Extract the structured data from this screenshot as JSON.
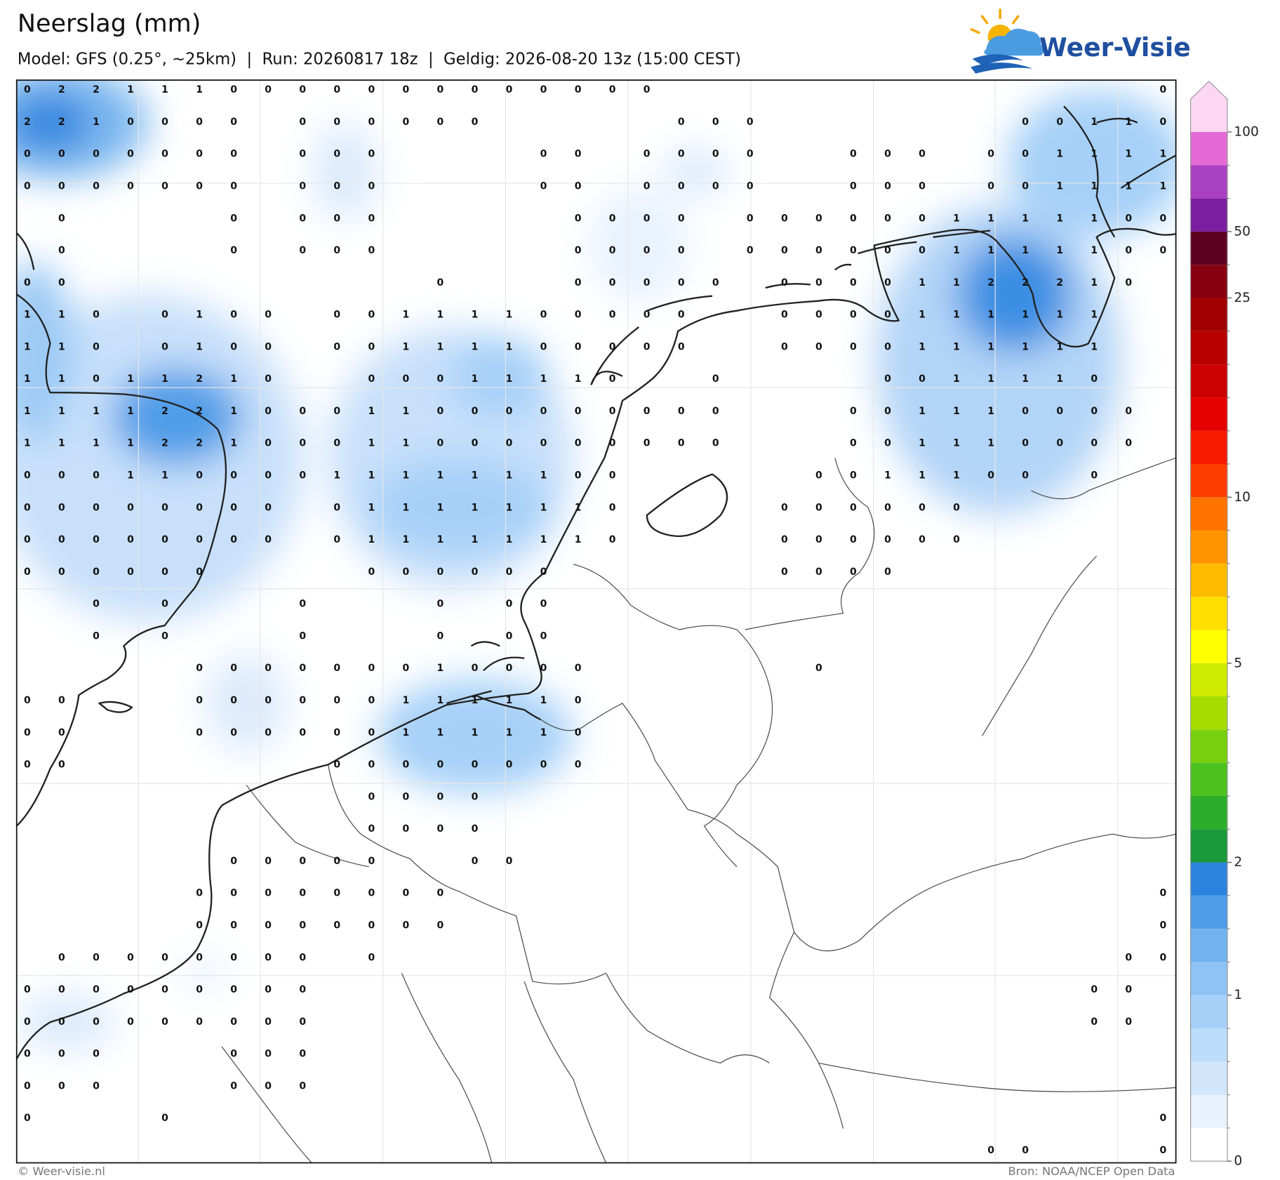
{
  "header": {
    "title": "Neerslag (mm)",
    "subtitle": "Model: GFS (0.25°, ~25km)  |  Run: 20260817 18z  |  Geldig: 2026-08-20 13z (15:00 CEST)"
  },
  "logo": {
    "text": "Weer-Visie"
  },
  "map": {
    "grid": [
      [
        0,
        2,
        2,
        1,
        1,
        1,
        0,
        0,
        0,
        0,
        0,
        0,
        0,
        0,
        0,
        0,
        0,
        0,
        0,
        null,
        null,
        null,
        null,
        null,
        null,
        null,
        null,
        null,
        null,
        null,
        null,
        null,
        null,
        0
      ],
      [
        2,
        2,
        1,
        0,
        0,
        0,
        0,
        null,
        0,
        0,
        0,
        0,
        0,
        0,
        null,
        null,
        null,
        null,
        null,
        0,
        0,
        0,
        null,
        null,
        null,
        null,
        null,
        null,
        null,
        0,
        0,
        1,
        1,
        0
      ],
      [
        0,
        0,
        0,
        0,
        0,
        0,
        0,
        null,
        0,
        0,
        0,
        null,
        null,
        null,
        null,
        0,
        0,
        null,
        0,
        0,
        0,
        0,
        null,
        null,
        0,
        0,
        0,
        null,
        0,
        0,
        1,
        1,
        1,
        1
      ],
      [
        0,
        0,
        0,
        0,
        0,
        0,
        0,
        null,
        0,
        0,
        0,
        null,
        null,
        null,
        null,
        0,
        0,
        null,
        0,
        0,
        0,
        0,
        null,
        null,
        0,
        0,
        0,
        null,
        0,
        0,
        1,
        1,
        1,
        1
      ],
      [
        null,
        0,
        null,
        null,
        null,
        null,
        0,
        null,
        0,
        0,
        0,
        null,
        null,
        null,
        null,
        null,
        0,
        0,
        0,
        0,
        null,
        0,
        0,
        0,
        0,
        0,
        0,
        1,
        1,
        1,
        1,
        1,
        0,
        0
      ],
      [
        null,
        0,
        null,
        null,
        null,
        null,
        0,
        null,
        0,
        0,
        0,
        null,
        null,
        null,
        null,
        null,
        0,
        0,
        0,
        0,
        null,
        0,
        0,
        0,
        0,
        0,
        0,
        1,
        1,
        1,
        1,
        1,
        0,
        0
      ],
      [
        0,
        0,
        null,
        null,
        null,
        null,
        null,
        null,
        null,
        null,
        null,
        null,
        0,
        null,
        null,
        null,
        0,
        0,
        0,
        0,
        0,
        null,
        0,
        0,
        0,
        0,
        1,
        1,
        2,
        2,
        2,
        1,
        0,
        null
      ],
      [
        1,
        1,
        0,
        null,
        0,
        1,
        0,
        0,
        null,
        0,
        0,
        1,
        1,
        1,
        1,
        0,
        0,
        0,
        0,
        0,
        null,
        null,
        0,
        0,
        0,
        0,
        1,
        1,
        1,
        1,
        1,
        1,
        null,
        null
      ],
      [
        1,
        1,
        0,
        null,
        0,
        1,
        0,
        0,
        null,
        0,
        0,
        1,
        1,
        1,
        1,
        0,
        0,
        0,
        0,
        0,
        null,
        null,
        0,
        0,
        0,
        0,
        1,
        1,
        1,
        1,
        1,
        1,
        null,
        null
      ],
      [
        1,
        1,
        0,
        1,
        1,
        2,
        1,
        0,
        null,
        null,
        0,
        0,
        0,
        1,
        1,
        1,
        1,
        0,
        null,
        null,
        0,
        null,
        null,
        null,
        null,
        0,
        0,
        1,
        1,
        1,
        1,
        0,
        null,
        null
      ],
      [
        1,
        1,
        1,
        1,
        2,
        2,
        1,
        0,
        0,
        0,
        1,
        1,
        0,
        0,
        0,
        0,
        0,
        0,
        0,
        0,
        0,
        null,
        null,
        null,
        0,
        0,
        1,
        1,
        1,
        0,
        0,
        0,
        0,
        null
      ],
      [
        1,
        1,
        1,
        1,
        2,
        2,
        1,
        0,
        0,
        0,
        1,
        1,
        0,
        0,
        0,
        0,
        0,
        0,
        0,
        0,
        0,
        null,
        null,
        null,
        0,
        0,
        1,
        1,
        1,
        0,
        0,
        0,
        0,
        null
      ],
      [
        0,
        0,
        0,
        1,
        1,
        0,
        0,
        0,
        0,
        1,
        1,
        1,
        1,
        1,
        1,
        1,
        0,
        0,
        null,
        null,
        null,
        null,
        null,
        0,
        0,
        1,
        1,
        1,
        0,
        0,
        null,
        0,
        null,
        null
      ],
      [
        0,
        0,
        0,
        0,
        0,
        0,
        0,
        0,
        null,
        0,
        1,
        1,
        1,
        1,
        1,
        1,
        1,
        0,
        null,
        null,
        null,
        null,
        0,
        0,
        0,
        0,
        0,
        0,
        null,
        null,
        null,
        null,
        null,
        null
      ],
      [
        0,
        0,
        0,
        0,
        0,
        0,
        0,
        0,
        null,
        0,
        1,
        1,
        1,
        1,
        1,
        1,
        1,
        0,
        null,
        null,
        null,
        null,
        0,
        0,
        0,
        0,
        0,
        0,
        null,
        null,
        null,
        null,
        null,
        null
      ],
      [
        0,
        0,
        0,
        0,
        0,
        0,
        null,
        null,
        null,
        null,
        0,
        0,
        0,
        0,
        0,
        0,
        null,
        null,
        null,
        null,
        null,
        null,
        0,
        0,
        0,
        0,
        null,
        null,
        null,
        null,
        null,
        null,
        null,
        null
      ],
      [
        null,
        null,
        0,
        null,
        0,
        null,
        null,
        null,
        0,
        null,
        null,
        null,
        0,
        null,
        0,
        0,
        null,
        null,
        null,
        null,
        null,
        null,
        null,
        null,
        null,
        null,
        null,
        null,
        null,
        null,
        null,
        null,
        null,
        null
      ],
      [
        null,
        null,
        0,
        null,
        0,
        null,
        null,
        null,
        0,
        null,
        null,
        null,
        0,
        null,
        0,
        0,
        null,
        null,
        null,
        null,
        null,
        null,
        null,
        null,
        null,
        null,
        null,
        null,
        null,
        null,
        null,
        null,
        null,
        null
      ],
      [
        null,
        null,
        null,
        null,
        null,
        0,
        0,
        0,
        0,
        0,
        0,
        0,
        1,
        0,
        0,
        0,
        0,
        null,
        null,
        null,
        null,
        null,
        null,
        0,
        null,
        null,
        null,
        null,
        null,
        null,
        null,
        null,
        null,
        null
      ],
      [
        0,
        0,
        null,
        null,
        null,
        0,
        0,
        0,
        0,
        0,
        0,
        1,
        1,
        1,
        1,
        1,
        0,
        null,
        null,
        null,
        null,
        null,
        null,
        null,
        null,
        null,
        null,
        null,
        null,
        null,
        null,
        null,
        null,
        null
      ],
      [
        0,
        0,
        null,
        null,
        null,
        0,
        0,
        0,
        0,
        0,
        0,
        1,
        1,
        1,
        1,
        1,
        0,
        null,
        null,
        null,
        null,
        null,
        null,
        null,
        null,
        null,
        null,
        null,
        null,
        null,
        null,
        null,
        null,
        null
      ],
      [
        0,
        0,
        null,
        null,
        null,
        null,
        null,
        null,
        null,
        0,
        0,
        0,
        0,
        0,
        0,
        0,
        0,
        null,
        null,
        null,
        null,
        null,
        null,
        null,
        null,
        null,
        null,
        null,
        null,
        null,
        null,
        null,
        null,
        null
      ],
      [
        null,
        null,
        null,
        null,
        null,
        null,
        null,
        null,
        null,
        null,
        0,
        0,
        0,
        0,
        null,
        null,
        null,
        null,
        null,
        null,
        null,
        null,
        null,
        null,
        null,
        null,
        null,
        null,
        null,
        null,
        null,
        null,
        null,
        null
      ],
      [
        null,
        null,
        null,
        null,
        null,
        null,
        null,
        null,
        null,
        null,
        0,
        0,
        0,
        0,
        null,
        null,
        null,
        null,
        null,
        null,
        null,
        null,
        null,
        null,
        null,
        null,
        null,
        null,
        null,
        null,
        null,
        null,
        null,
        null
      ],
      [
        null,
        null,
        null,
        null,
        null,
        null,
        0,
        0,
        0,
        0,
        0,
        null,
        null,
        0,
        0,
        null,
        null,
        null,
        null,
        null,
        null,
        null,
        null,
        null,
        null,
        null,
        null,
        null,
        null,
        null,
        null,
        null,
        null,
        null
      ],
      [
        null,
        null,
        null,
        null,
        null,
        0,
        0,
        0,
        0,
        0,
        0,
        0,
        0,
        null,
        null,
        null,
        null,
        null,
        null,
        null,
        null,
        null,
        null,
        null,
        null,
        null,
        null,
        null,
        null,
        null,
        null,
        null,
        null,
        0
      ],
      [
        null,
        null,
        null,
        null,
        null,
        0,
        0,
        0,
        0,
        0,
        0,
        0,
        0,
        null,
        null,
        null,
        null,
        null,
        null,
        null,
        null,
        null,
        null,
        null,
        null,
        null,
        null,
        null,
        null,
        null,
        null,
        null,
        null,
        0
      ],
      [
        null,
        0,
        0,
        0,
        0,
        0,
        0,
        0,
        0,
        null,
        0,
        null,
        null,
        null,
        null,
        null,
        null,
        null,
        null,
        null,
        null,
        null,
        null,
        null,
        null,
        null,
        null,
        null,
        null,
        null,
        null,
        null,
        0,
        0
      ],
      [
        0,
        0,
        0,
        0,
        0,
        0,
        0,
        0,
        0,
        null,
        null,
        null,
        null,
        null,
        null,
        null,
        null,
        null,
        null,
        null,
        null,
        null,
        null,
        null,
        null,
        null,
        null,
        null,
        null,
        null,
        null,
        0,
        0,
        null
      ],
      [
        0,
        0,
        0,
        0,
        0,
        0,
        0,
        0,
        0,
        null,
        null,
        null,
        null,
        null,
        null,
        null,
        null,
        null,
        null,
        null,
        null,
        null,
        null,
        null,
        null,
        null,
        null,
        null,
        null,
        null,
        null,
        0,
        0,
        null
      ],
      [
        0,
        0,
        0,
        null,
        null,
        null,
        0,
        0,
        0,
        null,
        null,
        null,
        null,
        null,
        null,
        null,
        null,
        null,
        null,
        null,
        null,
        null,
        null,
        null,
        null,
        null,
        null,
        null,
        null,
        null,
        null,
        null,
        null,
        null
      ],
      [
        0,
        0,
        0,
        null,
        null,
        null,
        0,
        0,
        0,
        null,
        null,
        null,
        null,
        null,
        null,
        null,
        null,
        null,
        null,
        null,
        null,
        null,
        null,
        null,
        null,
        null,
        null,
        null,
        null,
        null,
        null,
        null,
        null,
        null
      ],
      [
        0,
        null,
        null,
        null,
        0,
        null,
        null,
        null,
        null,
        null,
        null,
        null,
        null,
        null,
        null,
        null,
        null,
        null,
        null,
        null,
        null,
        null,
        null,
        null,
        null,
        null,
        null,
        null,
        null,
        null,
        null,
        null,
        null,
        0
      ],
      [
        null,
        null,
        null,
        null,
        null,
        null,
        null,
        null,
        null,
        null,
        null,
        null,
        null,
        null,
        null,
        null,
        null,
        null,
        null,
        null,
        null,
        null,
        null,
        null,
        null,
        null,
        null,
        null,
        0,
        0,
        null,
        null,
        null,
        0
      ]
    ]
  },
  "colorbar": {
    "levels": [
      0,
      0.1,
      0.2,
      0.4,
      0.6,
      1,
      1.25,
      1.5,
      1.75,
      2,
      2.5,
      3,
      3.5,
      4,
      4.5,
      5,
      6,
      7,
      8,
      9,
      10,
      12,
      14,
      16,
      18,
      20,
      25,
      30,
      50,
      60,
      80,
      100
    ],
    "colors": [
      "#ffffff",
      "#e8f2fd",
      "#d2e6fb",
      "#bcdcfa",
      "#a6d0f8",
      "#8ec3f4",
      "#71b2ef",
      "#4f9de8",
      "#2d84df",
      "#1b9a3b",
      "#2dae2a",
      "#4cc11f",
      "#78cf0d",
      "#a5dd00",
      "#cdeb00",
      "#ffff00",
      "#ffdf00",
      "#ffbb00",
      "#ff9400",
      "#ff7200",
      "#ff3c00",
      "#f81a00",
      "#e60000",
      "#cc0000",
      "#b80000",
      "#a00000",
      "#870010",
      "#5e0020",
      "#7a1fa0",
      "#a940c0",
      "#e46ad6",
      "#fcd7f3"
    ],
    "ticks": [
      0,
      1,
      2,
      5,
      10,
      25,
      50,
      100
    ]
  },
  "footer": {
    "copyright": "© Weer-visie.nl",
    "source": "Bron: NOAA/NCEP Open Data"
  }
}
